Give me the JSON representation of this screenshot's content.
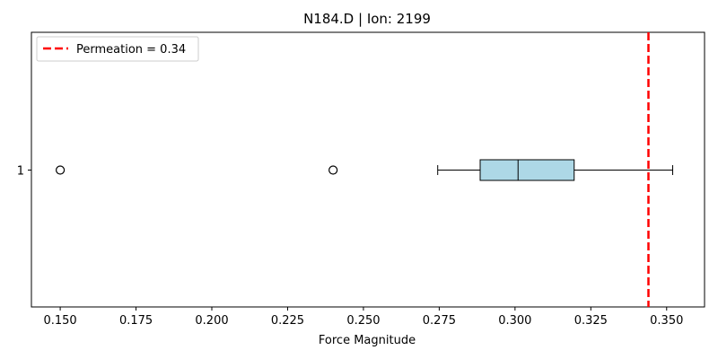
{
  "chart_data": {
    "type": "boxplot",
    "orientation": "horizontal",
    "title": "N184.D | Ion: 2199",
    "xlabel": "Force Magnitude",
    "ylabel": "",
    "xlim": [
      0.1405,
      0.3625
    ],
    "xticks": [
      0.15,
      0.175,
      0.2,
      0.225,
      0.25,
      0.275,
      0.3,
      0.325,
      0.35
    ],
    "xtick_labels": [
      "0.150",
      "0.175",
      "0.200",
      "0.225",
      "0.250",
      "0.275",
      "0.300",
      "0.325",
      "0.350"
    ],
    "ytick_labels": [
      "1"
    ],
    "boxes": [
      {
        "category": "1",
        "whisker_low": 0.2745,
        "q1": 0.2885,
        "median": 0.301,
        "q3": 0.3195,
        "whisker_high": 0.352,
        "outliers": [
          0.15,
          0.24
        ],
        "fill_color": "#add8e6"
      }
    ],
    "reference_line": {
      "value": 0.344,
      "color": "#ff0000",
      "style": "dashed",
      "legend_label": "Permeation = 0.34"
    },
    "legend_placement": "top-left",
    "grid": false
  }
}
